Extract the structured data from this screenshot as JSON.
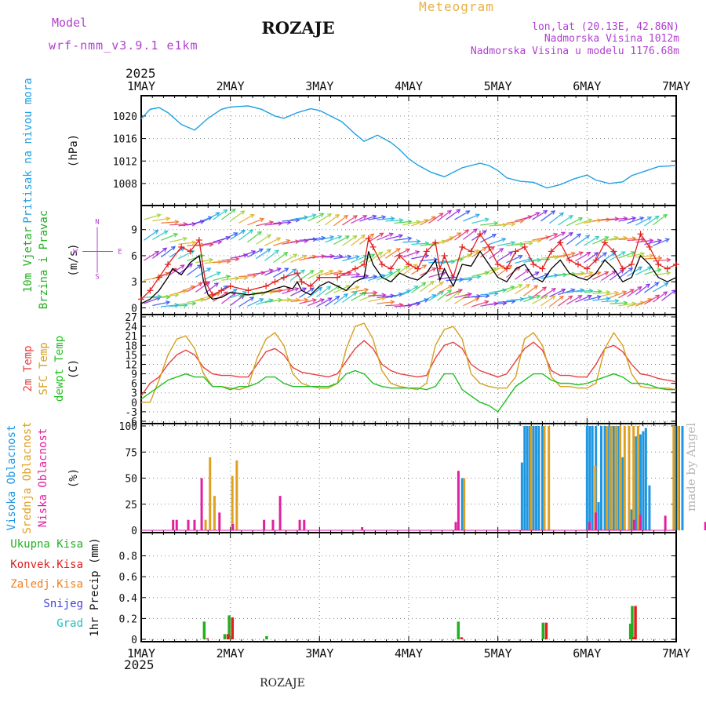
{
  "header": {
    "title": "ROZAJE",
    "subtitle": "Meteogram",
    "model_label": "Model",
    "model_name": "wrf-nmm_v3.9.1 e1km",
    "location_line": "lon,lat (20.13E, 42.86N)",
    "altitude_line": "Nadmorska Visina 1012m",
    "model_altitude_line": "Nadmorska Visina u modelu 1176.68m",
    "watermark": "made by Angel",
    "footer": "ROZAJE",
    "year": "2025"
  },
  "x_axis": {
    "labels": [
      "1MAY",
      "2MAY",
      "3MAY",
      "4MAY",
      "5MAY",
      "6MAY",
      "7MAY"
    ],
    "days": 6
  },
  "colors": {
    "pressure": "#1ea0e6",
    "wind_speed": "#000000",
    "wind_gust": "#e02020",
    "temp2m": "#e84040",
    "sfc_temp": "#d4a020",
    "dewpt": "#22c022",
    "cloud_high": "#1e96e0",
    "cloud_mid": "#e0a020",
    "cloud_low": "#e020a0",
    "precip_total": "#22b022",
    "precip_conv": "#e02020",
    "precip_frozen": "#f08020",
    "snow": "#4040e0",
    "hail": "#20c0c0",
    "model_text": "#b040d0",
    "subtitle_text": "#e8b040"
  },
  "chart_data": [
    {
      "type": "line",
      "panel": "pressure",
      "title": "",
      "ylabel": "(hPa)",
      "side_labels": [
        "Pritisak na nivou mora"
      ],
      "ylim": [
        1004.5,
        1022.5
      ],
      "yticks": [
        1008,
        1012,
        1016,
        1020
      ],
      "series": [
        {
          "name": "Pritisak na nivou mora",
          "x": [
            0,
            0.1,
            0.2,
            0.3,
            0.45,
            0.6,
            0.75,
            0.9,
            1.0,
            1.2,
            1.35,
            1.5,
            1.6,
            1.75,
            1.9,
            2.0,
            2.1,
            2.25,
            2.4,
            2.5,
            2.65,
            2.8,
            2.9,
            3.0,
            3.1,
            3.25,
            3.4,
            3.6,
            3.8,
            3.9,
            4.0,
            4.1,
            4.25,
            4.4,
            4.55,
            4.7,
            4.85,
            5.0,
            5.1,
            5.25,
            5.4,
            5.5,
            5.65,
            5.8,
            6.0
          ],
          "values": [
            1019.5,
            1021.2,
            1021.5,
            1020.6,
            1018.5,
            1017.5,
            1019.6,
            1021.2,
            1021.6,
            1021.8,
            1021.2,
            1020.0,
            1019.6,
            1020.6,
            1021.3,
            1021.0,
            1020.2,
            1019.0,
            1016.8,
            1015.5,
            1016.6,
            1015.3,
            1014.0,
            1012.4,
            1011.3,
            1010.0,
            1009.2,
            1010.8,
            1011.6,
            1011.2,
            1010.3,
            1009.0,
            1008.4,
            1008.2,
            1007.2,
            1007.8,
            1008.8,
            1009.5,
            1008.6,
            1008.0,
            1008.3,
            1009.4,
            1010.2,
            1011.0,
            1011.2
          ]
        }
      ]
    },
    {
      "type": "line",
      "panel": "wind",
      "title": "",
      "ylabel": "(m/s)",
      "side_labels": [
        "10m Vjetar",
        "Brzina i Pravac"
      ],
      "legend_compass": [
        "N",
        "W",
        "E",
        "S"
      ],
      "ylim": [
        -0.5,
        11.5
      ],
      "yticks": [
        0,
        3,
        6,
        9
      ],
      "series": [
        {
          "name": "Brzina",
          "x": [
            0,
            0.1,
            0.2,
            0.3,
            0.35,
            0.45,
            0.55,
            0.65,
            0.7,
            0.75,
            0.8,
            0.9,
            1.0,
            1.2,
            1.4,
            1.5,
            1.6,
            1.7,
            1.75,
            1.8,
            1.9,
            2.0,
            2.1,
            2.2,
            2.3,
            2.4,
            2.5,
            2.55,
            2.6,
            2.7,
            2.8,
            2.9,
            3.0,
            3.1,
            3.2,
            3.3,
            3.35,
            3.4,
            3.5,
            3.6,
            3.7,
            3.8,
            3.9,
            4.0,
            4.1,
            4.2,
            4.3,
            4.4,
            4.5,
            4.6,
            4.7,
            4.8,
            4.9,
            5.0,
            5.1,
            5.2,
            5.3,
            5.4,
            5.5,
            5.6,
            5.7,
            5.8,
            5.9,
            6.0
          ],
          "values": [
            0.5,
            1.0,
            2.0,
            3.5,
            4.5,
            3.8,
            5.2,
            6.0,
            3.0,
            1.5,
            1.0,
            1.2,
            1.8,
            1.5,
            1.8,
            2.2,
            2.5,
            2.2,
            3.0,
            2.0,
            1.5,
            2.5,
            3.0,
            2.5,
            2.0,
            3.0,
            3.5,
            6.5,
            5.0,
            3.5,
            3.0,
            4.0,
            3.5,
            3.2,
            4.0,
            5.5,
            3.2,
            4.5,
            2.5,
            5.0,
            4.8,
            6.5,
            5.0,
            3.5,
            3.0,
            4.5,
            5.0,
            3.5,
            3.0,
            4.5,
            5.5,
            4.0,
            3.5,
            3.2,
            4.0,
            5.5,
            4.5,
            3.0,
            3.5,
            6.0,
            5.0,
            3.5,
            3.0,
            3.5
          ]
        },
        {
          "name": "Udar",
          "x": [
            0,
            0.1,
            0.2,
            0.3,
            0.45,
            0.55,
            0.65,
            0.72,
            0.8,
            0.9,
            1.0,
            1.2,
            1.4,
            1.5,
            1.6,
            1.75,
            1.8,
            1.9,
            2.0,
            2.2,
            2.4,
            2.5,
            2.55,
            2.6,
            2.7,
            2.8,
            2.9,
            3.0,
            3.1,
            3.2,
            3.3,
            3.35,
            3.4,
            3.5,
            3.6,
            3.7,
            3.8,
            3.9,
            4.0,
            4.1,
            4.2,
            4.3,
            4.4,
            4.5,
            4.6,
            4.7,
            4.8,
            4.9,
            5.0,
            5.1,
            5.2,
            5.3,
            5.4,
            5.5,
            5.6,
            5.7,
            5.8,
            5.9,
            6.0
          ],
          "values": [
            1.0,
            2.0,
            3.5,
            5.0,
            7.0,
            6.5,
            7.8,
            3.0,
            1.5,
            2.0,
            2.5,
            2.0,
            2.5,
            3.0,
            3.5,
            4.0,
            3.0,
            2.5,
            3.5,
            3.5,
            4.5,
            5.0,
            8.0,
            7.0,
            5.0,
            4.5,
            6.0,
            5.0,
            4.5,
            6.5,
            7.5,
            4.5,
            6.0,
            3.5,
            7.0,
            6.5,
            8.5,
            7.0,
            5.0,
            4.5,
            6.5,
            7.0,
            5.0,
            4.5,
            6.5,
            7.5,
            5.5,
            5.0,
            4.5,
            5.5,
            7.5,
            6.5,
            4.5,
            5.0,
            8.5,
            7.0,
            5.0,
            4.5,
            5.0
          ]
        }
      ]
    },
    {
      "type": "line",
      "panel": "temperature",
      "title": "",
      "ylabel": "(C)",
      "side_labels": [
        "2m Temp",
        "SFC Temp",
        "dewpt Temp"
      ],
      "ylim": [
        -6,
        27
      ],
      "yticks": [
        -6,
        -3,
        0,
        3,
        6,
        9,
        12,
        15,
        18,
        21,
        24,
        27
      ],
      "series": [
        {
          "name": "2m Temp",
          "x": [
            0,
            0.1,
            0.2,
            0.3,
            0.4,
            0.5,
            0.6,
            0.7,
            0.8,
            0.9,
            1.0,
            1.1,
            1.2,
            1.3,
            1.4,
            1.5,
            1.6,
            1.7,
            1.8,
            1.9,
            2.0,
            2.1,
            2.2,
            2.3,
            2.4,
            2.5,
            2.6,
            2.7,
            2.8,
            2.9,
            3.0,
            3.1,
            3.2,
            3.3,
            3.4,
            3.5,
            3.6,
            3.7,
            3.8,
            3.9,
            4.0,
            4.1,
            4.2,
            4.3,
            4.4,
            4.5,
            4.6,
            4.7,
            4.8,
            4.9,
            5.0,
            5.1,
            5.2,
            5.3,
            5.4,
            5.5,
            5.6,
            5.7,
            5.8,
            5.9,
            6.0
          ],
          "values": [
            2,
            6,
            8,
            12,
            15,
            16.5,
            15,
            11,
            9,
            8.5,
            8.5,
            8,
            8,
            12,
            16,
            17,
            15,
            11,
            9.5,
            9,
            8.5,
            8,
            9,
            13,
            17,
            19.5,
            17,
            12,
            10,
            9,
            8.5,
            8,
            8.5,
            14,
            18,
            19,
            17,
            12,
            10,
            9,
            8,
            9,
            13,
            17,
            19,
            16.5,
            10,
            8.5,
            8.5,
            8,
            8,
            12,
            17,
            18,
            16,
            12,
            9,
            8.5,
            7.5,
            7,
            6.5
          ]
        },
        {
          "name": "SFC Temp",
          "x": [
            0,
            0.1,
            0.2,
            0.3,
            0.4,
            0.5,
            0.6,
            0.7,
            0.8,
            0.9,
            1.0,
            1.1,
            1.2,
            1.3,
            1.4,
            1.5,
            1.6,
            1.7,
            1.8,
            1.9,
            2.0,
            2.1,
            2.2,
            2.3,
            2.4,
            2.5,
            2.6,
            2.7,
            2.8,
            2.9,
            3.0,
            3.1,
            3.2,
            3.3,
            3.4,
            3.5,
            3.6,
            3.7,
            3.8,
            3.9,
            4.0,
            4.1,
            4.2,
            4.3,
            4.4,
            4.5,
            4.6,
            4.7,
            4.8,
            4.9,
            5.0,
            5.1,
            5.2,
            5.3,
            5.4,
            5.5,
            5.6,
            5.7,
            5.8,
            5.9,
            6.0
          ],
          "values": [
            0,
            0,
            7,
            15,
            20,
            21,
            17,
            9,
            5,
            5,
            4.5,
            4,
            5,
            14,
            20,
            22,
            18,
            9,
            6,
            5,
            4.5,
            4.5,
            6,
            17,
            24,
            25,
            20,
            10,
            6,
            5,
            4.5,
            4,
            6,
            18,
            23,
            24,
            20,
            9,
            6,
            5,
            4.5,
            4.5,
            8,
            20,
            22,
            18,
            8,
            5,
            5,
            4.5,
            4.5,
            6,
            17,
            22,
            18,
            9,
            5,
            4.5,
            4.5,
            4.5,
            4
          ]
        },
        {
          "name": "dewpt Temp",
          "x": [
            0,
            0.1,
            0.2,
            0.3,
            0.4,
            0.5,
            0.6,
            0.7,
            0.8,
            0.9,
            1.0,
            1.1,
            1.2,
            1.3,
            1.4,
            1.5,
            1.6,
            1.7,
            1.8,
            1.9,
            2.0,
            2.1,
            2.2,
            2.3,
            2.4,
            2.5,
            2.6,
            2.7,
            2.8,
            2.9,
            3.0,
            3.1,
            3.2,
            3.3,
            3.4,
            3.5,
            3.6,
            3.7,
            3.8,
            3.9,
            4.0,
            4.1,
            4.2,
            4.3,
            4.4,
            4.5,
            4.6,
            4.7,
            4.8,
            4.9,
            5.0,
            5.1,
            5.2,
            5.3,
            5.4,
            5.5,
            5.6,
            5.7,
            5.8,
            5.9,
            6.0
          ],
          "values": [
            1,
            3,
            5,
            7,
            8,
            9,
            8,
            8,
            5,
            5,
            4,
            5,
            5,
            6,
            8,
            8,
            6,
            5,
            5,
            5,
            5,
            5,
            6,
            9,
            10,
            9,
            6,
            5,
            4.5,
            4.5,
            4.5,
            4.5,
            4,
            5,
            9,
            9,
            4,
            2,
            0,
            -1,
            -3,
            1,
            5,
            7,
            9,
            9,
            7,
            6,
            6,
            5.5,
            6,
            7,
            8,
            9,
            8,
            6,
            6,
            5.5,
            4.5,
            4,
            4
          ]
        }
      ]
    },
    {
      "type": "bar",
      "panel": "clouds",
      "title": "",
      "ylabel": "(%)",
      "side_labels": [
        "Visoka Oblacnost",
        "Srednja Oblacnost",
        "Niska Oblacnost"
      ],
      "ylim": [
        0,
        100
      ],
      "yticks": [
        0,
        25,
        50,
        75,
        100
      ],
      "series": [
        {
          "name": "Visoka Oblacnost",
          "x": [
            3.6,
            4.27,
            4.3,
            4.33,
            4.36,
            4.4,
            4.43,
            4.46,
            4.5,
            5.0,
            5.03,
            5.06,
            5.1,
            5.13,
            5.16,
            5.2,
            5.23,
            5.26,
            5.3,
            5.33,
            5.36,
            5.4,
            5.5,
            5.55,
            5.6,
            5.63,
            5.66,
            5.7,
            5.99,
            6.03,
            6.07
          ],
          "values": [
            50,
            65,
            100,
            100,
            100,
            100,
            100,
            100,
            100,
            100,
            100,
            100,
            100,
            27,
            100,
            100,
            100,
            100,
            100,
            100,
            100,
            70,
            20,
            90,
            92,
            95,
            98,
            43,
            100,
            100,
            100
          ]
        },
        {
          "name": "Srednja Oblacnost",
          "x": [
            0.7,
            0.75,
            0.8,
            1.0,
            1.05,
            3.6,
            4.35,
            4.5,
            4.55,
            5.07,
            5.2,
            5.25,
            5.3,
            5.35,
            5.4,
            5.45,
            5.5,
            5.55,
            5.95,
            6.0,
            6.4,
            6.45,
            6.5,
            6.55,
            6.6
          ],
          "values": [
            10,
            70,
            33,
            52,
            67,
            50,
            100,
            100,
            100,
            62,
            100,
            100,
            100,
            100,
            100,
            100,
            100,
            100,
            100,
            100,
            10,
            10,
            10,
            10,
            10
          ]
        },
        {
          "name": "Niska Oblacnost",
          "x": [
            0.38,
            0.42,
            0.55,
            0.62,
            0.7,
            0.9,
            1.05,
            1.4,
            1.5,
            1.58,
            1.8,
            1.85,
            2.5,
            3.55,
            3.58,
            5.05,
            5.12,
            5.55,
            5.62,
            5.9,
            6.35,
            6.45,
            6.55
          ],
          "values": [
            10,
            10,
            10,
            10,
            50,
            17,
            6,
            10,
            10,
            33,
            10,
            10,
            3,
            8,
            57,
            8,
            17,
            10,
            15,
            14,
            8,
            10,
            10
          ]
        }
      ]
    },
    {
      "type": "bar",
      "panel": "precipitation",
      "title": "",
      "ylabel": "1hr Precip (mm)",
      "side_labels": [
        "Ukupna Kisa",
        "Konvek.Kisa",
        "Zaledj.Kisa",
        "Snijeg",
        "Grad"
      ],
      "ylim": [
        0,
        1.0
      ],
      "yticks": [
        0,
        0.2,
        0.4,
        0.6,
        0.8
      ],
      "series": [
        {
          "name": "Ukupna Kisa",
          "x": [
            0.72,
            0.95,
            1.0,
            1.42,
            3.57,
            4.52,
            5.5,
            5.52
          ],
          "values": [
            0.17,
            0.05,
            0.23,
            0.03,
            0.17,
            0.16,
            0.15,
            0.32
          ]
        },
        {
          "name": "Konvek.Kisa",
          "x": [
            0.73,
            0.96,
            1.01,
            3.58,
            4.53,
            5.51,
            5.53
          ],
          "values": [
            0.01,
            0.05,
            0.21,
            0.02,
            0.16,
            0.02,
            0.32
          ]
        }
      ]
    }
  ]
}
